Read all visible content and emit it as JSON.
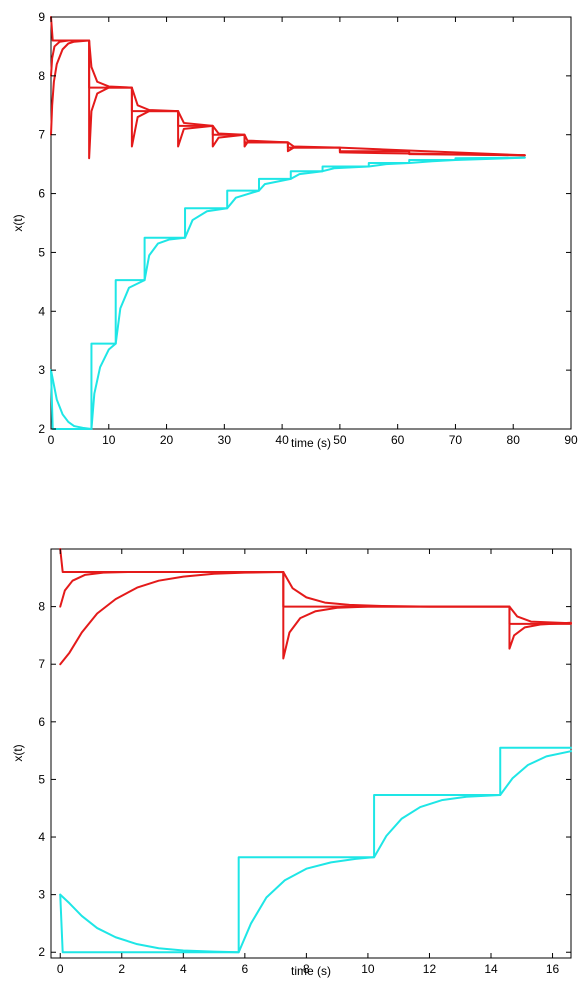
{
  "chart_data": [
    {
      "type": "line",
      "xlabel": "time (s)",
      "ylabel": "x(t)",
      "xlim": [
        0,
        90
      ],
      "ylim": [
        2,
        9
      ],
      "xticks": [
        0,
        10,
        20,
        30,
        40,
        50,
        60,
        70,
        80,
        90
      ],
      "yticks": [
        2,
        3,
        4,
        5,
        6,
        7,
        8,
        9
      ],
      "grid": false,
      "colors": {
        "upper": "#e41a1a",
        "lower": "#1ee6e6"
      },
      "switch_times": [
        0,
        6.6,
        14,
        22,
        28,
        33.5,
        36,
        41,
        45,
        50,
        55,
        62,
        70,
        82
      ],
      "series": [
        {
          "group": "upper",
          "style": "step",
          "x": [
            0,
            0.3,
            6.6,
            6.6,
            14,
            14,
            22,
            22,
            28,
            28,
            33.5,
            33.5,
            41,
            41,
            50,
            50,
            62,
            62,
            82
          ],
          "values": [
            9,
            8.6,
            8.6,
            7.8,
            7.8,
            7.4,
            7.4,
            7.15,
            7.15,
            7.0,
            7.0,
            6.87,
            6.87,
            6.78,
            6.78,
            6.72,
            6.72,
            6.67,
            6.65
          ]
        },
        {
          "group": "upper",
          "style": "curve",
          "x": [
            0,
            0.2,
            0.5,
            1,
            2,
            3,
            4,
            6.6,
            6.6,
            7,
            8,
            10,
            14,
            14,
            15,
            17,
            22,
            22,
            23,
            28,
            28,
            29,
            33.5,
            33.5,
            34,
            41,
            41,
            42,
            50,
            50,
            62,
            82
          ],
          "values": [
            7,
            7.5,
            7.9,
            8.2,
            8.45,
            8.55,
            8.58,
            8.6,
            6.6,
            7.4,
            7.7,
            7.8,
            7.8,
            6.8,
            7.3,
            7.4,
            7.4,
            6.8,
            7.1,
            7.15,
            6.8,
            6.95,
            7.0,
            6.8,
            6.87,
            6.87,
            6.72,
            6.78,
            6.78,
            6.7,
            6.68,
            6.65
          ]
        },
        {
          "group": "upper",
          "style": "curve",
          "x": [
            0,
            0.2,
            0.6,
            1.5,
            3,
            6.6,
            6.6,
            7,
            8,
            10,
            14,
            14,
            15,
            17,
            22,
            22,
            23,
            28,
            28,
            29,
            33.5,
            33.5,
            34,
            41,
            41,
            42,
            50,
            82
          ],
          "values": [
            8,
            8.3,
            8.5,
            8.58,
            8.6,
            8.6,
            8.6,
            8.15,
            7.9,
            7.82,
            7.8,
            7.8,
            7.5,
            7.42,
            7.4,
            7.4,
            7.2,
            7.15,
            7.15,
            7.02,
            7.0,
            7.0,
            6.9,
            6.87,
            6.87,
            6.8,
            6.78,
            6.65
          ]
        },
        {
          "group": "lower",
          "style": "step",
          "x": [
            0,
            0.3,
            7,
            7,
            11.2,
            11.2,
            16.2,
            16.2,
            23.2,
            23.2,
            30.5,
            30.5,
            36,
            36,
            41.5,
            41.5,
            47,
            47,
            55,
            55,
            62,
            62,
            70,
            70,
            82
          ],
          "values": [
            3,
            2,
            2,
            3.45,
            3.45,
            4.53,
            4.53,
            5.25,
            5.25,
            5.75,
            5.75,
            6.05,
            6.05,
            6.25,
            6.25,
            6.38,
            6.38,
            6.46,
            6.46,
            6.52,
            6.52,
            6.57,
            6.57,
            6.6,
            6.61
          ]
        },
        {
          "group": "lower",
          "style": "curve",
          "x": [
            0,
            1,
            2,
            3,
            4,
            5.5,
            7,
            7.5,
            8.5,
            10,
            11.2,
            12,
            13.5,
            16.2,
            17,
            18.5,
            20.5,
            23.2,
            24.5,
            27,
            30.5,
            32,
            36,
            37,
            41.5,
            43,
            47,
            49,
            55,
            58,
            62,
            66,
            70,
            82
          ],
          "values": [
            3,
            2.5,
            2.25,
            2.12,
            2.05,
            2.02,
            2.0,
            2.6,
            3.05,
            3.35,
            3.45,
            4.05,
            4.4,
            4.53,
            4.95,
            5.15,
            5.22,
            5.25,
            5.55,
            5.7,
            5.75,
            5.93,
            6.05,
            6.16,
            6.25,
            6.33,
            6.38,
            6.43,
            6.46,
            6.5,
            6.52,
            6.55,
            6.57,
            6.61
          ]
        }
      ]
    },
    {
      "type": "line",
      "xlabel": "time (s)",
      "ylabel": "x(t)",
      "xlim": [
        -0.3,
        16.6
      ],
      "ylim": [
        1.9,
        9.0
      ],
      "xticks": [
        0,
        2,
        4,
        6,
        8,
        10,
        12,
        14,
        16
      ],
      "yticks": [
        2,
        3,
        4,
        5,
        6,
        7,
        8
      ],
      "grid": false,
      "colors": {
        "upper": "#e41a1a",
        "lower": "#1ee6e6"
      },
      "series": [
        {
          "group": "upper",
          "style": "step",
          "x": [
            0,
            0.08,
            7.25,
            7.25,
            14.6,
            14.6,
            16.6
          ],
          "values": [
            9,
            8.6,
            8.6,
            8.0,
            8.0,
            7.7,
            7.7
          ]
        },
        {
          "group": "upper",
          "style": "curve",
          "x": [
            0,
            0.3,
            0.7,
            1.2,
            1.8,
            2.5,
            3.2,
            4,
            5,
            6,
            7.25,
            7.25,
            7.45,
            7.8,
            8.3,
            9,
            10,
            11,
            14.6,
            14.6,
            14.75,
            15.1,
            15.6,
            16.6
          ],
          "values": [
            7.0,
            7.2,
            7.55,
            7.88,
            8.13,
            8.33,
            8.45,
            8.52,
            8.57,
            8.59,
            8.6,
            7.1,
            7.55,
            7.8,
            7.92,
            7.98,
            8.0,
            8.0,
            8.0,
            7.27,
            7.5,
            7.64,
            7.69,
            7.72
          ]
        },
        {
          "group": "upper",
          "style": "curve",
          "x": [
            0,
            0.15,
            0.4,
            0.8,
            1.4,
            2.2,
            3.5,
            5,
            7.25,
            7.25,
            7.55,
            8.0,
            8.6,
            9.4,
            10.5,
            12,
            14.6,
            14.6,
            14.85,
            15.3,
            16.6
          ],
          "values": [
            8.0,
            8.28,
            8.45,
            8.55,
            8.59,
            8.6,
            8.6,
            8.6,
            8.6,
            8.6,
            8.32,
            8.16,
            8.07,
            8.03,
            8.01,
            8.0,
            8.0,
            8.0,
            7.83,
            7.74,
            7.71
          ]
        },
        {
          "group": "lower",
          "style": "step",
          "x": [
            0,
            0.08,
            5.8,
            5.8,
            10.2,
            10.2,
            14.3,
            14.3,
            16.6
          ],
          "values": [
            3,
            2.0,
            2.0,
            3.65,
            3.65,
            4.73,
            4.73,
            5.55,
            5.55
          ]
        },
        {
          "group": "lower",
          "style": "curve",
          "x": [
            0,
            0.3,
            0.7,
            1.2,
            1.8,
            2.5,
            3.2,
            4,
            5,
            5.8,
            6.2,
            6.7,
            7.3,
            8,
            8.8,
            9.6,
            10.2,
            10.6,
            11.1,
            11.7,
            12.4,
            13.2,
            14.3,
            14.7,
            15.2,
            15.8,
            16.6
          ],
          "values": [
            3.0,
            2.85,
            2.63,
            2.42,
            2.26,
            2.14,
            2.07,
            2.03,
            2.01,
            2.0,
            2.5,
            2.95,
            3.25,
            3.45,
            3.56,
            3.62,
            3.65,
            4.02,
            4.32,
            4.52,
            4.64,
            4.7,
            4.73,
            5.02,
            5.25,
            5.4,
            5.49
          ]
        }
      ]
    }
  ]
}
